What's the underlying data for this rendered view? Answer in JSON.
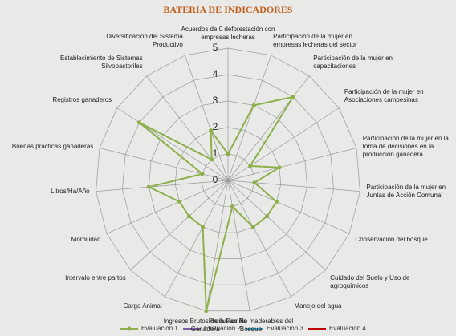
{
  "chart_data": {
    "type": "radar",
    "title": "BATERIA DE INDICADORES",
    "categories": [
      "Acuerdos de 0 deforestación con empresas lecheras",
      "Participación de la mujer en empresas lecheras del sector",
      "Participación de la mujer en capacitaciones",
      "Participación de la mujer en Asociaciones campesinas",
      "Participación de la mujer en la toma de decisiones en la producción ganadera",
      "Participación de la mujer en Juntas de Acción Comunal",
      "Conservación del bosque",
      "Cuidado del Suelo y Uso de agroquímicos",
      "Manejo del agua",
      "Productos No maderables del Bosque",
      "Ingresos Brutos de la Familia Ganadera",
      "Carga Animal",
      "Intervalo entre partos",
      "Morbilidad",
      "Litros/Ha/Año",
      "Buenas prácticas ganaderas",
      "Registros ganaderos",
      "Establecimiento de Sistemas Silvopastoriles",
      "Diversificación del Sistema Productivo"
    ],
    "series": [
      {
        "name": "Evaluación 1",
        "color": "#8db04a",
        "values": [
          1,
          3,
          4,
          1,
          2,
          1,
          2,
          2,
          2,
          1,
          5,
          2,
          2,
          2,
          3,
          1,
          4,
          1,
          2
        ]
      },
      {
        "name": "Evaluación 2",
        "color": "#7b5ea7",
        "values": [
          null,
          null,
          null,
          null,
          null,
          null,
          null,
          null,
          null,
          null,
          null,
          null,
          null,
          null,
          null,
          null,
          null,
          null,
          null
        ]
      },
      {
        "name": "Evaluación 3",
        "color": "#3d9cc4",
        "values": [
          null,
          null,
          null,
          null,
          null,
          null,
          null,
          null,
          null,
          null,
          null,
          null,
          null,
          null,
          null,
          null,
          null,
          null,
          null
        ]
      },
      {
        "name": "Evaluación 4",
        "color": "#c00000",
        "values": [
          null,
          null,
          null,
          null,
          null,
          null,
          null,
          null,
          null,
          null,
          null,
          null,
          null,
          null,
          null,
          null,
          null,
          null,
          null
        ]
      }
    ],
    "rlim": [
      0,
      5
    ],
    "rticks": [
      0,
      1,
      2,
      3,
      4,
      5
    ],
    "legend": "bottom"
  }
}
